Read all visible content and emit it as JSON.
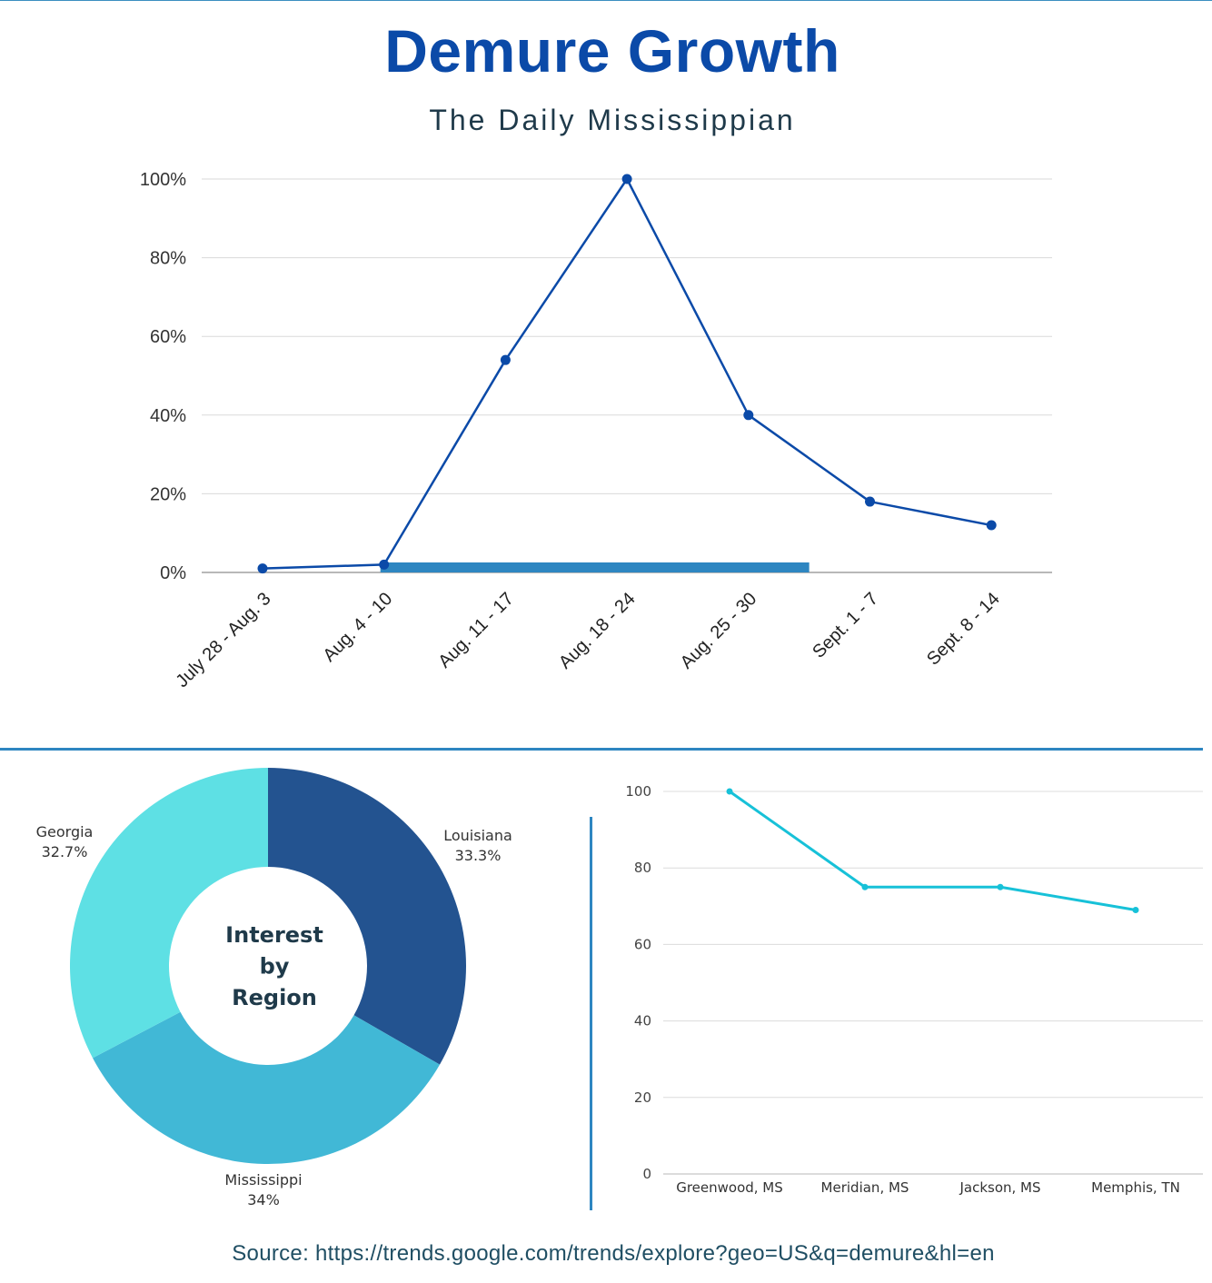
{
  "header": {
    "title": "Demure Growth",
    "subtitle": "The Daily Mississippian"
  },
  "footer": {
    "source": "Source: https://trends.google.com/trends/explore?geo=US&q=demure&hl=en"
  },
  "colors": {
    "title": "#0b4aa8",
    "line_main": "#0b4aa8",
    "highlight_bar": "#2e86c1",
    "donut": [
      "#235390",
      "#41b8d6",
      "#5ee0e4"
    ],
    "line_cities": "#17c1d8"
  },
  "chart_data": [
    {
      "type": "line",
      "title": "Demure Growth",
      "subtitle": "The Daily Mississippian",
      "categories": [
        "July 28 - Aug. 3",
        "Aug. 4 - 10",
        "Aug. 11 - 17",
        "Aug. 18 - 24",
        "Aug. 25 - 30",
        "Sept. 1 - 7",
        "Sept. 8 - 14"
      ],
      "values": [
        1,
        2,
        54,
        100,
        40,
        18,
        12
      ],
      "y_ticks": [
        "0%",
        "20%",
        "40%",
        "60%",
        "80%",
        "100%"
      ],
      "ylim": [
        0,
        100
      ],
      "highlight": {
        "from_category": 1,
        "to_category": 4.5
      },
      "grid": true
    },
    {
      "type": "pie",
      "title": "Interest by Region",
      "center_label": [
        "Interest",
        "by",
        "Region"
      ],
      "slices": [
        {
          "label": "Louisiana",
          "pct_label": "33.3%",
          "value": 33.3
        },
        {
          "label": "Mississippi",
          "pct_label": "34%",
          "value": 34
        },
        {
          "label": "Georgia",
          "pct_label": "32.7%",
          "value": 32.7
        }
      ]
    },
    {
      "type": "line",
      "categories": [
        "Greenwood, MS",
        "Meridian, MS",
        "Jackson, MS",
        "Memphis, TN"
      ],
      "values": [
        100,
        75,
        75,
        69
      ],
      "y_ticks": [
        "0",
        "20",
        "40",
        "60",
        "80",
        "100"
      ],
      "ylim": [
        0,
        100
      ],
      "grid": true
    }
  ]
}
